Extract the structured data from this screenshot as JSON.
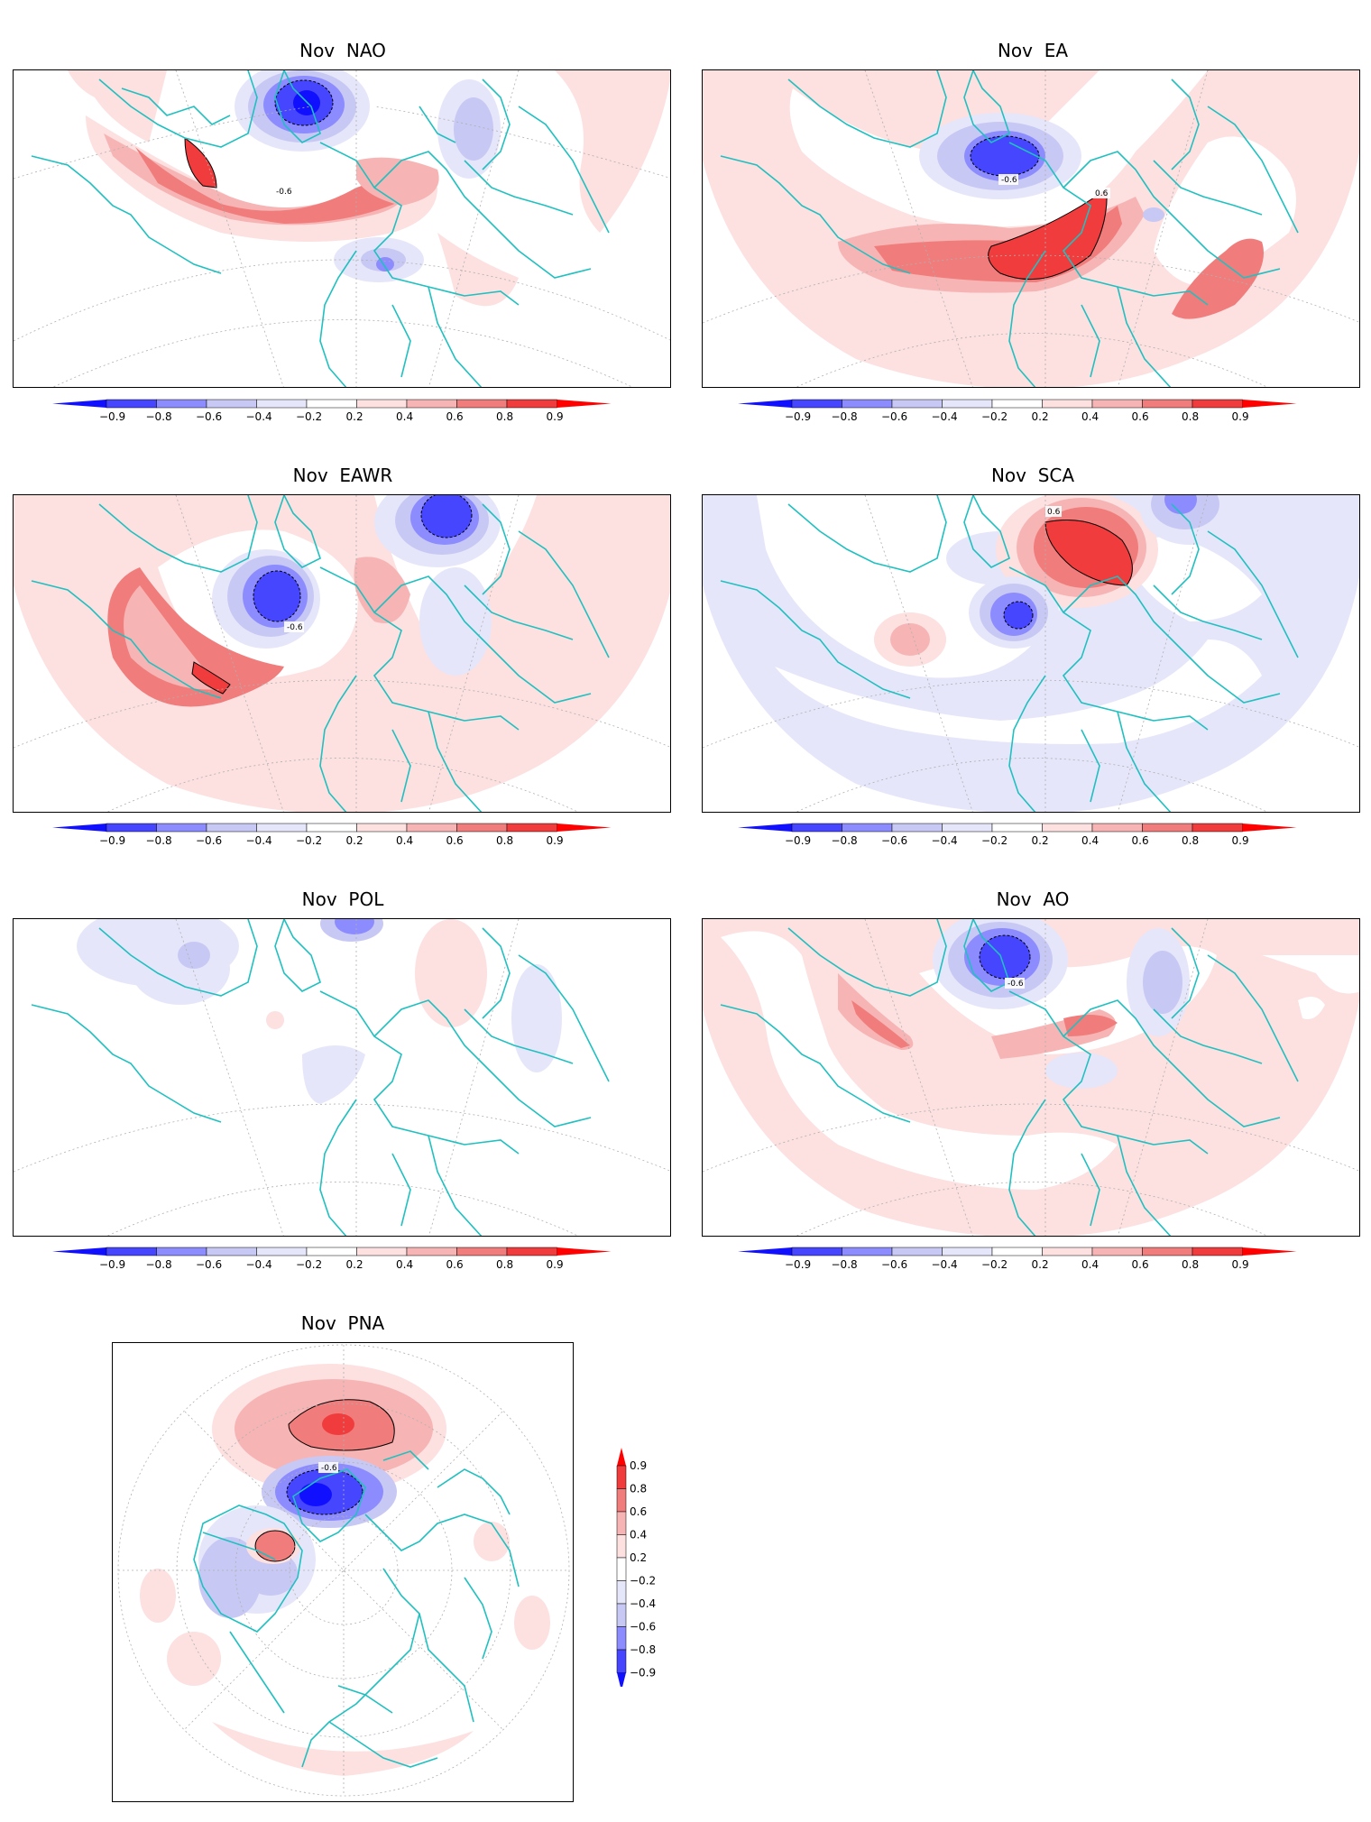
{
  "panels": [
    {
      "id": "nao",
      "title": "Nov  NAO",
      "contour_label": "-0.6"
    },
    {
      "id": "ea",
      "title": "Nov  EA",
      "contour_label": "-0.6",
      "contour_label_2": "0.6"
    },
    {
      "id": "eawr",
      "title": "Nov  EAWR",
      "contour_label": "-0.6"
    },
    {
      "id": "sca",
      "title": "Nov  SCA",
      "contour_label": "0.6"
    },
    {
      "id": "pol",
      "title": "Nov  POL"
    },
    {
      "id": "ao",
      "title": "Nov  AO",
      "contour_label": "-0.6"
    },
    {
      "id": "pna",
      "title": "Nov  PNA",
      "contour_label": "-0.6"
    }
  ],
  "colorbar": {
    "levels": [
      "-0.9",
      "-0.8",
      "-0.6",
      "-0.4",
      "-0.2",
      "0.2",
      "0.4",
      "0.6",
      "0.8",
      "0.9"
    ],
    "colors": {
      "neg_09": "#1010ff",
      "neg_08": "#4646ff",
      "neg_06": "#8c8cff",
      "neg_04": "#c8c8f5",
      "neg_02": "#e6e6fa",
      "neutral": "#ffffff",
      "pos_02": "#fde0e0",
      "pos_04": "#f7b4b4",
      "pos_06": "#f07c7c",
      "pos_08": "#f03c3c",
      "pos_09": "#ff0000"
    }
  },
  "colors": {
    "coast": "#20c0c0",
    "grid": "#b0b0b0",
    "frame": "#000000"
  }
}
